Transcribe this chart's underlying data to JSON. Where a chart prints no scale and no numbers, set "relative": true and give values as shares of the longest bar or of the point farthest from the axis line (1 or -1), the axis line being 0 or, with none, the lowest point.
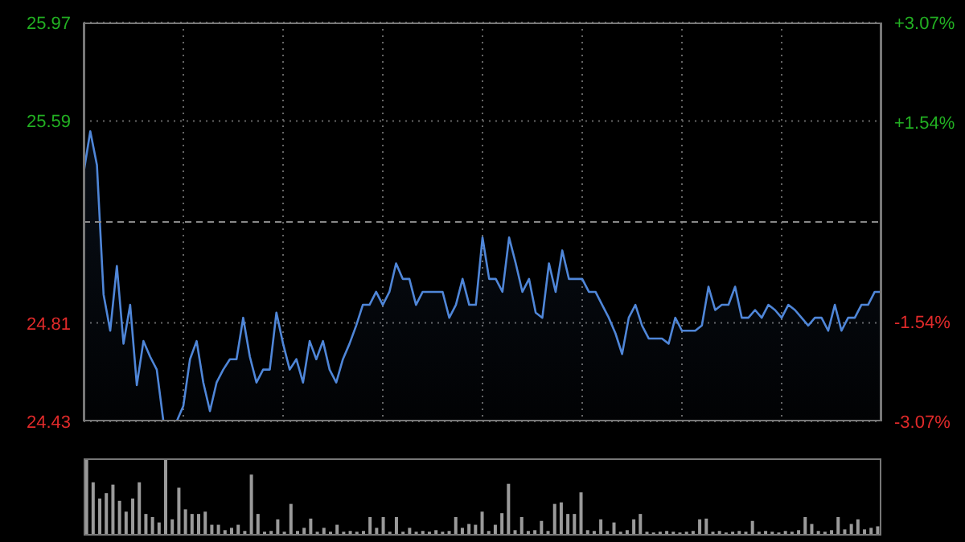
{
  "chart_data": [
    {
      "type": "area",
      "categories": [
        null,
        null,
        null,
        null,
        null,
        null,
        null,
        null,
        null,
        null,
        null,
        null,
        null,
        null,
        null,
        null,
        null,
        null,
        null,
        null,
        null,
        null,
        null,
        null,
        null,
        null,
        null,
        null,
        null,
        null,
        null,
        null,
        null,
        null,
        null,
        null,
        null,
        null,
        null,
        null,
        null,
        null,
        null,
        null,
        null,
        null,
        null,
        null,
        null,
        null,
        null,
        null,
        null,
        null,
        null,
        null,
        null,
        null,
        null,
        null,
        null,
        null,
        null,
        null,
        null,
        null,
        null,
        null,
        null,
        null,
        null,
        null,
        null,
        null,
        null,
        null,
        null,
        null,
        null,
        null,
        null,
        null,
        null,
        null,
        null,
        null,
        null,
        null,
        null,
        null,
        null,
        null,
        null,
        null,
        null,
        null,
        null,
        null,
        null,
        null,
        null,
        null,
        null,
        null,
        null,
        null,
        null,
        null,
        null,
        null,
        null,
        null,
        null,
        null,
        null,
        null,
        null,
        null,
        null,
        null,
        null
      ],
      "series": [
        {
          "color": "#4f86d8",
          "values": [
            25.39,
            25.55,
            25.42,
            24.92,
            24.78,
            25.03,
            24.73,
            24.88,
            24.57,
            24.74,
            24.68,
            24.63,
            24.43,
            24.43,
            24.43,
            24.49,
            24.67,
            24.74,
            24.58,
            24.47,
            24.58,
            24.63,
            24.67,
            24.67,
            24.83,
            24.68,
            24.58,
            24.63,
            24.63,
            24.85,
            24.73,
            24.63,
            24.67,
            24.58,
            24.74,
            24.67,
            24.74,
            24.63,
            24.58,
            24.67,
            24.73,
            24.8,
            24.88,
            24.88,
            24.93,
            24.88,
            24.93,
            25.04,
            24.98,
            24.98,
            24.88,
            24.93,
            24.93,
            24.93,
            24.93,
            24.83,
            24.88,
            24.98,
            24.88,
            24.88,
            25.14,
            24.98,
            24.98,
            24.93,
            25.14,
            25.04,
            24.93,
            24.98,
            24.85,
            24.83,
            25.04,
            24.93,
            25.09,
            24.98,
            24.98,
            24.98,
            24.93,
            24.93,
            24.88,
            24.83,
            24.77,
            24.69,
            24.83,
            24.88,
            24.8,
            24.75,
            24.75,
            24.75,
            24.73,
            24.83,
            24.78,
            24.78,
            24.78,
            24.8,
            24.95,
            24.86,
            24.88,
            24.88,
            24.95,
            24.83,
            24.83,
            24.86,
            24.83,
            24.88,
            24.86,
            24.83,
            24.88,
            24.86,
            24.83,
            24.8,
            24.83,
            24.83,
            24.78,
            24.88,
            24.78,
            24.83,
            24.83,
            24.88,
            24.88,
            24.93,
            24.93
          ]
        }
      ],
      "ylim": [
        24.43,
        25.97
      ],
      "yticks": [
        24.43,
        24.81,
        25.59,
        25.97
      ],
      "y2lim": [
        -3.07,
        3.07
      ],
      "y2ticks": [
        {
          "value": -3.07,
          "label": "-3.07%"
        },
        {
          "value": -1.54,
          "label": "-1.54%"
        },
        {
          "value": 1.54,
          "label": "+1.54%"
        },
        {
          "value": 3.07,
          "label": "+3.07%"
        }
      ],
      "ref_lines": [
        {
          "axis": "y",
          "value": 25.2,
          "color": "#888888",
          "line_style": "dashed"
        }
      ],
      "grid": true,
      "legend": false,
      "tick_labels": "y"
    },
    {
      "type": "bar",
      "relative": true,
      "color": "#9a9a9a",
      "categories": [
        null,
        null,
        null,
        null,
        null,
        null,
        null,
        null,
        null,
        null,
        null,
        null,
        null,
        null,
        null,
        null,
        null,
        null,
        null,
        null,
        null,
        null,
        null,
        null,
        null,
        null,
        null,
        null,
        null,
        null,
        null,
        null,
        null,
        null,
        null,
        null,
        null,
        null,
        null,
        null,
        null,
        null,
        null,
        null,
        null,
        null,
        null,
        null,
        null,
        null,
        null,
        null,
        null,
        null,
        null,
        null,
        null,
        null,
        null,
        null,
        null,
        null,
        null,
        null,
        null,
        null,
        null,
        null,
        null,
        null,
        null,
        null,
        null,
        null,
        null,
        null,
        null,
        null,
        null,
        null,
        null,
        null,
        null,
        null,
        null,
        null,
        null,
        null,
        null,
        null,
        null,
        null,
        null,
        null,
        null,
        null,
        null,
        null,
        null,
        null,
        null,
        null,
        null,
        null,
        null,
        null,
        null,
        null,
        null,
        null,
        null,
        null,
        null,
        null,
        null,
        null,
        null,
        null,
        null,
        null,
        null
      ],
      "values": [
        1.0,
        0.69,
        0.48,
        0.55,
        0.66,
        0.45,
        0.31,
        0.48,
        0.69,
        0.28,
        0.24,
        0.17,
        1.0,
        0.21,
        0.62,
        0.34,
        0.28,
        0.28,
        0.31,
        0.14,
        0.14,
        0.07,
        0.1,
        0.14,
        0.06,
        0.79,
        0.28,
        0.05,
        0.06,
        0.21,
        0.05,
        0.41,
        0.06,
        0.1,
        0.22,
        0.05,
        0.1,
        0.05,
        0.14,
        0.05,
        0.06,
        0.05,
        0.06,
        0.24,
        0.1,
        0.24,
        0.05,
        0.24,
        0.05,
        0.1,
        0.05,
        0.06,
        0.05,
        0.07,
        0.05,
        0.06,
        0.24,
        0.1,
        0.15,
        0.14,
        0.31,
        0.06,
        0.14,
        0.29,
        0.67,
        0.07,
        0.24,
        0.06,
        0.07,
        0.19,
        0.06,
        0.41,
        0.43,
        0.28,
        0.28,
        0.56,
        0.07,
        0.06,
        0.21,
        0.06,
        0.17,
        0.05,
        0.07,
        0.21,
        0.28,
        0.05,
        0.04,
        0.05,
        0.06,
        0.05,
        0.04,
        0.05,
        0.06,
        0.21,
        0.22,
        0.05,
        0.06,
        0.04,
        0.05,
        0.06,
        0.05,
        0.19,
        0.05,
        0.06,
        0.05,
        0.04,
        0.06,
        0.05,
        0.07,
        0.24,
        0.15,
        0.06,
        0.05,
        0.07,
        0.24,
        0.08,
        0.15,
        0.21,
        0.08,
        0.1,
        0.12
      ],
      "tick_labels": false
    }
  ]
}
